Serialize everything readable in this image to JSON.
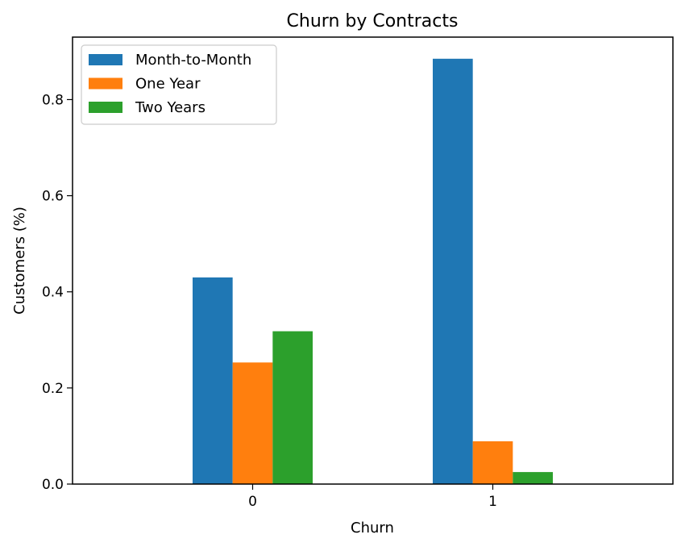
{
  "chart_data": {
    "type": "bar",
    "title": "Churn by Contracts",
    "xlabel": "Churn",
    "ylabel": "Customers (%)",
    "categories": [
      "0",
      "1"
    ],
    "series": [
      {
        "name": "Month-to-Month",
        "color": "#1f77b4",
        "values": [
          0.43,
          0.885
        ]
      },
      {
        "name": "One Year",
        "color": "#ff7f0e",
        "values": [
          0.253,
          0.089
        ]
      },
      {
        "name": "Two Years",
        "color": "#2ca02c",
        "values": [
          0.318,
          0.025
        ]
      }
    ],
    "ylim": [
      0,
      0.93
    ],
    "yticks": [
      0.0,
      0.2,
      0.4,
      0.6,
      0.8
    ],
    "ytick_labels": [
      "0.0",
      "0.2",
      "0.4",
      "0.6",
      "0.8"
    ],
    "grid": false,
    "legend_position": "top-left"
  }
}
